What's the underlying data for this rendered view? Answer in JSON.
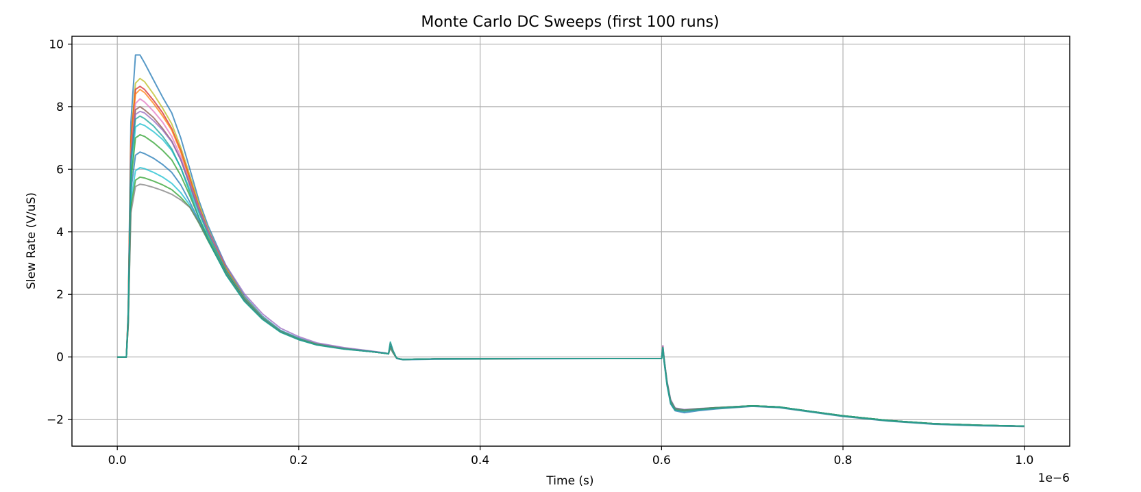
{
  "chart_data": {
    "type": "line",
    "title": "Monte Carlo DC Sweeps (first 100 runs)",
    "xlabel": "Time (s)",
    "ylabel": "Slew Rate (V/uS)",
    "x_offset_label": "1e−6",
    "xlim": [
      -0.05,
      1.05
    ],
    "ylim": [
      -2.85,
      10.25
    ],
    "x_ticks": [
      0.0,
      0.2,
      0.4,
      0.6,
      0.8,
      1.0
    ],
    "x_tick_labels": [
      "0.0",
      "0.2",
      "0.4",
      "0.6",
      "0.8",
      "1.0"
    ],
    "y_ticks": [
      -2,
      0,
      2,
      4,
      6,
      8,
      10
    ],
    "y_tick_labels": [
      "−2",
      "0",
      "2",
      "4",
      "6",
      "8",
      "10"
    ],
    "grid": true,
    "legend": "none",
    "x": [
      0.0,
      0.01,
      0.012,
      0.015,
      0.02,
      0.025,
      0.03,
      0.04,
      0.05,
      0.06,
      0.07,
      0.08,
      0.09,
      0.1,
      0.12,
      0.14,
      0.16,
      0.18,
      0.2,
      0.22,
      0.25,
      0.28,
      0.295,
      0.299,
      0.301,
      0.304,
      0.308,
      0.315,
      0.35,
      0.45,
      0.55,
      0.6,
      0.6015,
      0.603,
      0.606,
      0.61,
      0.615,
      0.625,
      0.64,
      0.66,
      0.7,
      0.73,
      0.77,
      0.8,
      0.85,
      0.9,
      0.95,
      1.0
    ],
    "series": [
      {
        "color": "#1f77b4",
        "values": [
          0,
          0,
          1.5,
          7.5,
          9.65,
          9.65,
          9.4,
          8.85,
          8.3,
          7.8,
          7.0,
          6.0,
          5.0,
          4.2,
          2.9,
          1.95,
          1.3,
          0.85,
          0.6,
          0.42,
          0.28,
          0.18,
          0.13,
          0.1,
          0.45,
          0.2,
          -0.05,
          -0.09,
          -0.07,
          -0.06,
          -0.05,
          -0.05,
          0.25,
          -0.2,
          -0.9,
          -1.5,
          -1.72,
          -1.78,
          -1.72,
          -1.66,
          -1.58,
          -1.62,
          -1.78,
          -1.9,
          -2.05,
          -2.15,
          -2.2,
          -2.22
        ]
      },
      {
        "color": "#bcbd22",
        "values": [
          0,
          0,
          1.4,
          7.0,
          8.75,
          8.9,
          8.8,
          8.4,
          7.95,
          7.45,
          6.7,
          5.8,
          4.9,
          4.1,
          2.85,
          1.9,
          1.27,
          0.83,
          0.58,
          0.41,
          0.27,
          0.17,
          0.12,
          0.1,
          0.42,
          0.18,
          -0.04,
          -0.08,
          -0.06,
          -0.05,
          -0.05,
          -0.05,
          0.3,
          -0.15,
          -0.85,
          -1.45,
          -1.68,
          -1.72,
          -1.68,
          -1.64,
          -1.57,
          -1.61,
          -1.77,
          -1.89,
          -2.04,
          -2.14,
          -2.19,
          -2.21
        ]
      },
      {
        "color": "#d62728",
        "values": [
          0,
          0,
          1.4,
          6.9,
          8.55,
          8.65,
          8.55,
          8.2,
          7.8,
          7.3,
          6.6,
          5.7,
          4.8,
          4.05,
          2.8,
          1.88,
          1.25,
          0.82,
          0.57,
          0.4,
          0.26,
          0.17,
          0.12,
          0.1,
          0.4,
          0.17,
          -0.04,
          -0.08,
          -0.06,
          -0.05,
          -0.05,
          -0.05,
          0.35,
          -0.1,
          -0.8,
          -1.4,
          -1.65,
          -1.7,
          -1.67,
          -1.63,
          -1.56,
          -1.6,
          -1.76,
          -1.88,
          -2.03,
          -2.13,
          -2.18,
          -2.21
        ]
      },
      {
        "color": "#ff7f0e",
        "values": [
          0,
          0,
          1.4,
          6.8,
          8.4,
          8.55,
          8.45,
          8.1,
          7.7,
          7.25,
          6.55,
          5.65,
          4.78,
          4.02,
          2.78,
          1.86,
          1.24,
          0.81,
          0.56,
          0.39,
          0.26,
          0.17,
          0.12,
          0.1,
          0.38,
          0.16,
          -0.04,
          -0.08,
          -0.06,
          -0.05,
          -0.05,
          -0.05,
          0.28,
          -0.12,
          -0.82,
          -1.42,
          -1.66,
          -1.71,
          -1.67,
          -1.63,
          -1.56,
          -1.6,
          -1.76,
          -1.88,
          -2.03,
          -2.13,
          -2.18,
          -2.21
        ]
      },
      {
        "color": "#e377c2",
        "values": [
          0,
          0,
          1.3,
          6.5,
          8.1,
          8.25,
          8.15,
          7.85,
          7.5,
          7.05,
          6.4,
          5.55,
          4.7,
          3.97,
          2.76,
          1.86,
          1.25,
          0.82,
          0.57,
          0.4,
          0.26,
          0.17,
          0.12,
          0.1,
          0.36,
          0.15,
          -0.04,
          -0.08,
          -0.06,
          -0.05,
          -0.05,
          -0.05,
          0.32,
          -0.1,
          -0.78,
          -1.38,
          -1.64,
          -1.69,
          -1.66,
          -1.62,
          -1.56,
          -1.6,
          -1.76,
          -1.88,
          -2.03,
          -2.13,
          -2.18,
          -2.21
        ]
      },
      {
        "color": "#8c564b",
        "values": [
          0,
          0,
          1.3,
          6.4,
          7.9,
          8.0,
          7.9,
          7.65,
          7.3,
          6.9,
          6.3,
          5.48,
          4.65,
          3.94,
          2.76,
          1.86,
          1.25,
          0.82,
          0.57,
          0.4,
          0.26,
          0.17,
          0.12,
          0.1,
          0.35,
          0.15,
          -0.04,
          -0.08,
          -0.06,
          -0.05,
          -0.05,
          -0.05,
          0.3,
          -0.12,
          -0.8,
          -1.4,
          -1.65,
          -1.7,
          -1.66,
          -1.62,
          -1.56,
          -1.6,
          -1.76,
          -1.88,
          -2.03,
          -2.13,
          -2.18,
          -2.21
        ]
      },
      {
        "color": "#9467bd",
        "values": [
          0,
          0,
          1.3,
          6.3,
          7.75,
          7.85,
          7.8,
          7.55,
          7.25,
          6.88,
          6.3,
          5.55,
          4.75,
          4.05,
          2.92,
          2.02,
          1.38,
          0.92,
          0.65,
          0.45,
          0.3,
          0.19,
          0.13,
          0.11,
          0.38,
          0.16,
          -0.04,
          -0.08,
          -0.06,
          -0.05,
          -0.05,
          -0.05,
          0.36,
          -0.08,
          -0.76,
          -1.36,
          -1.63,
          -1.68,
          -1.65,
          -1.62,
          -1.56,
          -1.6,
          -1.76,
          -1.88,
          -2.03,
          -2.13,
          -2.18,
          -2.21
        ]
      },
      {
        "color": "#17becf",
        "values": [
          0,
          0,
          1.2,
          5.8,
          7.35,
          7.45,
          7.4,
          7.2,
          6.95,
          6.6,
          6.05,
          5.35,
          4.6,
          3.93,
          2.76,
          1.87,
          1.26,
          0.83,
          0.58,
          0.4,
          0.26,
          0.17,
          0.12,
          0.1,
          0.35,
          0.15,
          -0.04,
          -0.08,
          -0.06,
          -0.05,
          -0.05,
          -0.05,
          0.27,
          -0.13,
          -0.82,
          -1.42,
          -1.66,
          -1.71,
          -1.67,
          -1.63,
          -1.56,
          -1.6,
          -1.76,
          -1.88,
          -2.03,
          -2.13,
          -2.18,
          -2.21
        ]
      },
      {
        "color": "#2ca02c",
        "values": [
          0,
          0,
          1.2,
          5.6,
          7.0,
          7.1,
          7.05,
          6.85,
          6.6,
          6.3,
          5.8,
          5.15,
          4.45,
          3.83,
          2.7,
          1.84,
          1.24,
          0.82,
          0.57,
          0.4,
          0.26,
          0.17,
          0.12,
          0.1,
          0.33,
          0.14,
          -0.04,
          -0.08,
          -0.06,
          -0.05,
          -0.05,
          -0.05,
          0.3,
          -0.1,
          -0.8,
          -1.4,
          -1.65,
          -1.7,
          -1.66,
          -1.62,
          -1.56,
          -1.6,
          -1.76,
          -1.88,
          -2.03,
          -2.13,
          -2.18,
          -2.21
        ]
      },
      {
        "color": "#1f77b4",
        "values": [
          0,
          0,
          1.1,
          5.3,
          6.45,
          6.55,
          6.5,
          6.35,
          6.15,
          5.9,
          5.5,
          4.95,
          4.35,
          3.76,
          2.66,
          1.82,
          1.23,
          0.81,
          0.56,
          0.39,
          0.26,
          0.17,
          0.12,
          0.1,
          0.32,
          0.14,
          -0.04,
          -0.08,
          -0.06,
          -0.05,
          -0.05,
          -0.05,
          0.25,
          -0.14,
          -0.84,
          -1.44,
          -1.67,
          -1.72,
          -1.67,
          -1.63,
          -1.56,
          -1.6,
          -1.76,
          -1.88,
          -2.03,
          -2.13,
          -2.18,
          -2.21
        ]
      },
      {
        "color": "#17becf",
        "values": [
          0,
          0,
          1.1,
          5.0,
          5.95,
          6.05,
          6.02,
          5.9,
          5.75,
          5.55,
          5.25,
          4.85,
          4.3,
          3.73,
          2.64,
          1.8,
          1.22,
          0.8,
          0.56,
          0.39,
          0.26,
          0.17,
          0.12,
          0.1,
          0.3,
          0.13,
          -0.04,
          -0.08,
          -0.06,
          -0.05,
          -0.05,
          -0.05,
          0.26,
          -0.12,
          -0.82,
          -1.42,
          -1.66,
          -1.71,
          -1.67,
          -1.63,
          -1.56,
          -1.6,
          -1.76,
          -1.88,
          -2.03,
          -2.13,
          -2.18,
          -2.21
        ]
      },
      {
        "color": "#2ca02c",
        "values": [
          0,
          0,
          1.0,
          4.8,
          5.65,
          5.75,
          5.72,
          5.62,
          5.5,
          5.35,
          5.1,
          4.78,
          4.28,
          3.72,
          2.64,
          1.8,
          1.22,
          0.8,
          0.56,
          0.39,
          0.26,
          0.17,
          0.12,
          0.1,
          0.3,
          0.13,
          -0.04,
          -0.08,
          -0.06,
          -0.05,
          -0.05,
          -0.05,
          0.24,
          -0.14,
          -0.84,
          -1.44,
          -1.67,
          -1.72,
          -1.67,
          -1.63,
          -1.56,
          -1.6,
          -1.76,
          -1.88,
          -2.03,
          -2.13,
          -2.18,
          -2.21
        ]
      },
      {
        "color": "#7f7f7f",
        "values": [
          0,
          0,
          1.0,
          4.6,
          5.45,
          5.52,
          5.5,
          5.42,
          5.32,
          5.2,
          5.02,
          4.78,
          4.3,
          3.74,
          2.66,
          1.82,
          1.23,
          0.81,
          0.56,
          0.39,
          0.26,
          0.17,
          0.12,
          0.1,
          0.3,
          0.13,
          -0.04,
          -0.08,
          -0.06,
          -0.05,
          -0.05,
          -0.05,
          0.25,
          -0.13,
          -0.83,
          -1.43,
          -1.66,
          -1.71,
          -1.67,
          -1.63,
          -1.57,
          -1.61,
          -1.77,
          -1.89,
          -2.04,
          -2.14,
          -2.19,
          -2.22
        ]
      },
      {
        "color": "#17a398",
        "values": [
          0,
          0,
          1.3,
          6.2,
          7.6,
          7.7,
          7.62,
          7.38,
          7.05,
          6.65,
          6.05,
          5.25,
          4.45,
          3.75,
          2.62,
          1.78,
          1.2,
          0.79,
          0.55,
          0.38,
          0.25,
          0.17,
          0.12,
          0.1,
          0.48,
          0.2,
          -0.04,
          -0.08,
          -0.06,
          -0.05,
          -0.05,
          -0.05,
          0.3,
          -0.15,
          -0.88,
          -1.48,
          -1.7,
          -1.74,
          -1.69,
          -1.64,
          -1.57,
          -1.61,
          -1.77,
          -1.89,
          -2.04,
          -2.14,
          -2.19,
          -2.21
        ]
      }
    ]
  }
}
